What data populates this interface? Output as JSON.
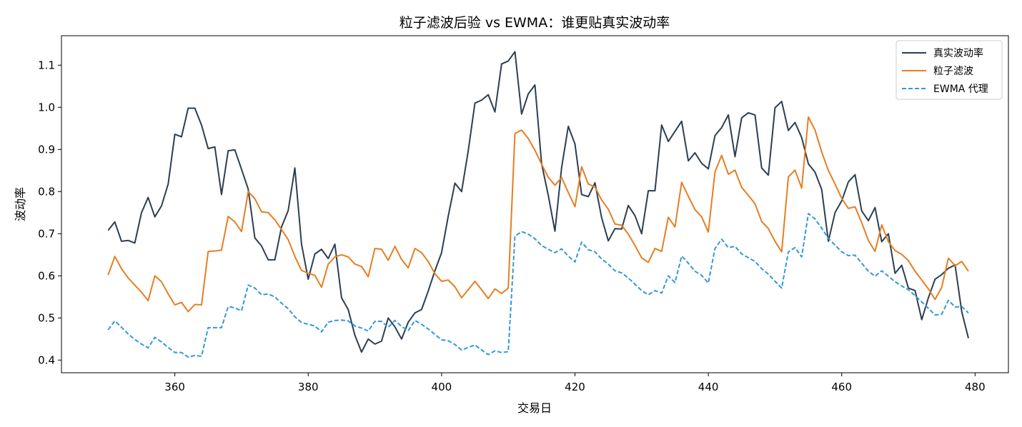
{
  "chart_data": {
    "type": "line",
    "title": "粒子滤波后验 vs EWMA：谁更贴真实波动率",
    "xlabel": "交易日",
    "ylabel": "波动率",
    "xlim": [
      343,
      485
    ],
    "ylim": [
      0.37,
      1.17
    ],
    "xticks": [
      360,
      380,
      400,
      420,
      440,
      460,
      480
    ],
    "yticks": [
      0.4,
      0.5,
      0.6,
      0.7,
      0.8,
      0.9,
      1.0,
      1.1
    ],
    "ytick_labels": [
      "0.4",
      "0.5",
      "0.6",
      "0.7",
      "0.8",
      "0.9",
      "1.0",
      "1.1"
    ],
    "grid": false,
    "legend_position": "top-right",
    "x": [
      350,
      351,
      352,
      353,
      354,
      355,
      356,
      357,
      358,
      359,
      360,
      361,
      362,
      363,
      364,
      365,
      366,
      367,
      368,
      369,
      370,
      371,
      372,
      373,
      374,
      375,
      376,
      377,
      378,
      379,
      380,
      381,
      382,
      383,
      384,
      385,
      386,
      387,
      388,
      389,
      390,
      391,
      392,
      393,
      394,
      395,
      396,
      397,
      398,
      399,
      400,
      401,
      402,
      403,
      404,
      405,
      406,
      407,
      408,
      409,
      410,
      411,
      412,
      413,
      414,
      415,
      416,
      417,
      418,
      419,
      420,
      421,
      422,
      423,
      424,
      425,
      426,
      427,
      428,
      429,
      430,
      431,
      432,
      433,
      434,
      435,
      436,
      437,
      438,
      439,
      440,
      441,
      442,
      443,
      444,
      445,
      446,
      447,
      448,
      449,
      450,
      451,
      452,
      453,
      454,
      455,
      456,
      457,
      458,
      459,
      460,
      461,
      462,
      463,
      464,
      465,
      466,
      467,
      468,
      469,
      470,
      471,
      472,
      473,
      474,
      475,
      476,
      477,
      478,
      479
    ],
    "series": [
      {
        "name": "真实波动率",
        "color": "#2c3e50",
        "style": "solid",
        "values": [
          0.708,
          0.728,
          0.682,
          0.684,
          0.678,
          0.75,
          0.786,
          0.74,
          0.766,
          0.818,
          0.936,
          0.93,
          0.998,
          0.998,
          0.958,
          0.902,
          0.906,
          0.793,
          0.897,
          0.899,
          0.853,
          0.806,
          0.69,
          0.671,
          0.638,
          0.638,
          0.716,
          0.755,
          0.856,
          0.675,
          0.592,
          0.652,
          0.663,
          0.641,
          0.675,
          0.548,
          0.52,
          0.459,
          0.419,
          0.45,
          0.438,
          0.445,
          0.5,
          0.479,
          0.45,
          0.49,
          0.512,
          0.52,
          0.564,
          0.612,
          0.655,
          0.742,
          0.82,
          0.8,
          0.897,
          1.01,
          1.017,
          1.03,
          0.989,
          1.103,
          1.11,
          1.132,
          0.984,
          1.032,
          1.053,
          0.866,
          0.791,
          0.706,
          0.857,
          0.955,
          0.913,
          0.793,
          0.788,
          0.821,
          0.738,
          0.683,
          0.712,
          0.711,
          0.767,
          0.743,
          0.7,
          0.802,
          0.802,
          0.958,
          0.919,
          0.943,
          0.967,
          0.873,
          0.892,
          0.867,
          0.854,
          0.933,
          0.952,
          0.982,
          0.883,
          0.975,
          0.987,
          0.982,
          0.856,
          0.839,
          0.999,
          1.014,
          0.945,
          0.964,
          0.928,
          0.866,
          0.846,
          0.805,
          0.682,
          0.75,
          0.778,
          0.823,
          0.84,
          0.754,
          0.731,
          0.762,
          0.681,
          0.7,
          0.606,
          0.625,
          0.571,
          0.565,
          0.496,
          0.548,
          0.592,
          0.603,
          0.618,
          0.626,
          0.515,
          0.452
        ]
      },
      {
        "name": "粒子滤波",
        "color": "#e67e22",
        "style": "solid",
        "values": [
          0.602,
          0.646,
          0.617,
          0.595,
          0.578,
          0.561,
          0.541,
          0.6,
          0.586,
          0.557,
          0.531,
          0.537,
          0.515,
          0.532,
          0.531,
          0.658,
          0.659,
          0.661,
          0.741,
          0.728,
          0.705,
          0.8,
          0.783,
          0.752,
          0.75,
          0.733,
          0.71,
          0.686,
          0.646,
          0.613,
          0.606,
          0.601,
          0.573,
          0.628,
          0.645,
          0.65,
          0.645,
          0.628,
          0.622,
          0.598,
          0.665,
          0.663,
          0.637,
          0.67,
          0.639,
          0.619,
          0.665,
          0.655,
          0.634,
          0.605,
          0.587,
          0.59,
          0.574,
          0.548,
          0.567,
          0.587,
          0.567,
          0.546,
          0.569,
          0.558,
          0.571,
          0.938,
          0.946,
          0.926,
          0.898,
          0.865,
          0.834,
          0.815,
          0.833,
          0.798,
          0.764,
          0.859,
          0.818,
          0.811,
          0.78,
          0.758,
          0.723,
          0.72,
          0.699,
          0.672,
          0.643,
          0.632,
          0.665,
          0.658,
          0.739,
          0.716,
          0.822,
          0.789,
          0.757,
          0.74,
          0.704,
          0.847,
          0.886,
          0.841,
          0.851,
          0.81,
          0.791,
          0.771,
          0.729,
          0.712,
          0.682,
          0.657,
          0.835,
          0.851,
          0.808,
          0.977,
          0.946,
          0.894,
          0.85,
          0.818,
          0.784,
          0.76,
          0.764,
          0.726,
          0.684,
          0.658,
          0.721,
          0.681,
          0.66,
          0.651,
          0.636,
          0.611,
          0.59,
          0.569,
          0.544,
          0.573,
          0.642,
          0.624,
          0.634,
          0.611
        ]
      },
      {
        "name": "EWMA 代理",
        "color": "#3498db",
        "style": "dashed",
        "values": [
          0.472,
          0.493,
          0.478,
          0.462,
          0.449,
          0.438,
          0.429,
          0.454,
          0.443,
          0.43,
          0.418,
          0.418,
          0.407,
          0.411,
          0.409,
          0.477,
          0.477,
          0.477,
          0.527,
          0.524,
          0.517,
          0.578,
          0.571,
          0.555,
          0.557,
          0.55,
          0.535,
          0.522,
          0.503,
          0.489,
          0.485,
          0.481,
          0.467,
          0.49,
          0.494,
          0.495,
          0.493,
          0.481,
          0.476,
          0.469,
          0.492,
          0.492,
          0.478,
          0.494,
          0.48,
          0.47,
          0.494,
          0.485,
          0.474,
          0.461,
          0.448,
          0.446,
          0.437,
          0.424,
          0.43,
          0.436,
          0.424,
          0.413,
          0.422,
          0.418,
          0.42,
          0.694,
          0.705,
          0.699,
          0.688,
          0.672,
          0.663,
          0.655,
          0.664,
          0.647,
          0.633,
          0.68,
          0.662,
          0.657,
          0.64,
          0.628,
          0.612,
          0.607,
          0.595,
          0.58,
          0.565,
          0.555,
          0.565,
          0.559,
          0.6,
          0.584,
          0.647,
          0.63,
          0.611,
          0.601,
          0.583,
          0.665,
          0.687,
          0.667,
          0.67,
          0.652,
          0.643,
          0.634,
          0.617,
          0.604,
          0.587,
          0.571,
          0.657,
          0.667,
          0.645,
          0.748,
          0.735,
          0.713,
          0.689,
          0.673,
          0.657,
          0.648,
          0.649,
          0.63,
          0.611,
          0.599,
          0.612,
          0.599,
          0.586,
          0.576,
          0.567,
          0.553,
          0.538,
          0.523,
          0.507,
          0.509,
          0.542,
          0.526,
          0.527,
          0.512
        ]
      }
    ]
  }
}
